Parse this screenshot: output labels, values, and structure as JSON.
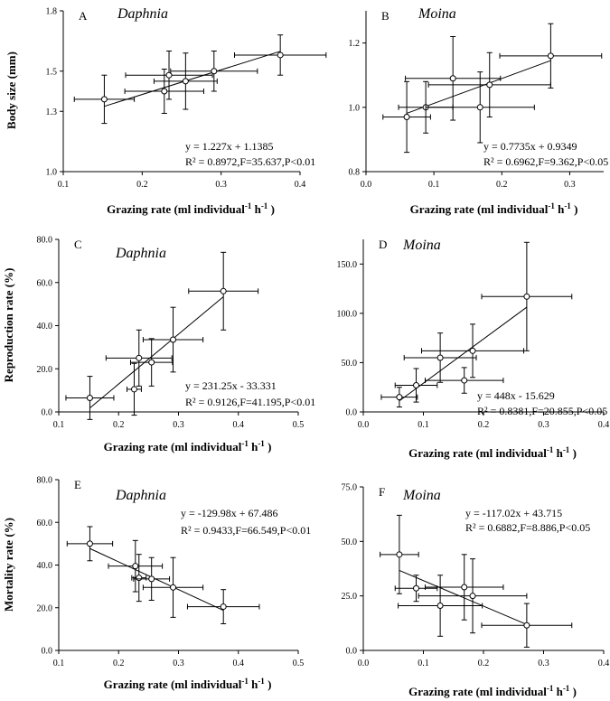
{
  "chart_data": [
    {
      "type": "scatter",
      "panel": "A",
      "title": "Daphnia",
      "xlabel": "Grazing rate (ml individual-1 h-1)",
      "ylabel": "Body size (mm)",
      "xlim": [
        0.1,
        0.4
      ],
      "ylim": [
        1.0,
        1.8
      ],
      "xticks": [
        "0.1",
        "0.2",
        "0.3",
        "0.4"
      ],
      "yticks": [
        "1.0",
        "1.3",
        "1.5",
        "1.8"
      ],
      "points": [
        {
          "x": 0.152,
          "y": 1.36,
          "xerr": 0.038,
          "yerr": 0.12
        },
        {
          "x": 0.228,
          "y": 1.4,
          "xerr": 0.05,
          "yerr": 0.11
        },
        {
          "x": 0.234,
          "y": 1.48,
          "xerr": 0.055,
          "yerr": 0.12
        },
        {
          "x": 0.255,
          "y": 1.45,
          "xerr": 0.04,
          "yerr": 0.14
        },
        {
          "x": 0.291,
          "y": 1.5,
          "xerr": 0.055,
          "yerr": 0.1
        },
        {
          "x": 0.375,
          "y": 1.58,
          "xerr": 0.058,
          "yerr": 0.1
        }
      ],
      "fit": {
        "slope": 1.227,
        "intercept": 1.1385,
        "x_range": [
          0.152,
          0.375
        ]
      },
      "equation": "y = 1.227x + 1.1385",
      "stats": "R² = 0.8972,F=35.637,P<0.01"
    },
    {
      "type": "scatter",
      "panel": "B",
      "title": "Moina",
      "xlabel": "Grazing rate (ml individual-1 h-1)",
      "ylabel": "",
      "xlim": [
        0.0,
        0.35
      ],
      "ylim": [
        0.8,
        1.3
      ],
      "xticks": [
        "0.0",
        "0.1",
        "0.2",
        "0.3"
      ],
      "yticks": [
        "0.8",
        "1.0",
        "1.2"
      ],
      "points": [
        {
          "x": 0.06,
          "y": 0.97,
          "xerr": 0.035,
          "yerr": 0.11
        },
        {
          "x": 0.088,
          "y": 1.0,
          "xerr": 0.04,
          "yerr": 0.08
        },
        {
          "x": 0.128,
          "y": 1.09,
          "xerr": 0.07,
          "yerr": 0.13
        },
        {
          "x": 0.168,
          "y": 1.0,
          "xerr": 0.08,
          "yerr": 0.11
        },
        {
          "x": 0.182,
          "y": 1.07,
          "xerr": 0.09,
          "yerr": 0.1
        },
        {
          "x": 0.272,
          "y": 1.16,
          "xerr": 0.075,
          "yerr": 0.1
        }
      ],
      "fit": {
        "slope": 0.7735,
        "intercept": 0.9349,
        "x_range": [
          0.06,
          0.272
        ]
      },
      "equation": "y = 0.7735x + 0.9349",
      "stats": "R² = 0.6962,F=9.362,P<0.05"
    },
    {
      "type": "scatter",
      "panel": "C",
      "title": "Daphnia",
      "xlabel": "Grazing rate (ml individual-1 h-1)",
      "ylabel": "Reproduction rate (%)",
      "xlim": [
        0.1,
        0.5
      ],
      "ylim": [
        0.0,
        80.0
      ],
      "xticks": [
        "0.1",
        "0.2",
        "0.3",
        "0.4",
        "0.5"
      ],
      "yticks": [
        "0.0",
        "20.0",
        "40.0",
        "60.0",
        "80.0"
      ],
      "points": [
        {
          "x": 0.152,
          "y": 6.5,
          "xerr": 0.04,
          "yerr": 10
        },
        {
          "x": 0.226,
          "y": 10.5,
          "xerr": 0.012,
          "yerr": 12
        },
        {
          "x": 0.234,
          "y": 25.0,
          "xerr": 0.055,
          "yerr": 13
        },
        {
          "x": 0.255,
          "y": 23.0,
          "xerr": 0.035,
          "yerr": 11
        },
        {
          "x": 0.291,
          "y": 33.5,
          "xerr": 0.05,
          "yerr": 15
        },
        {
          "x": 0.375,
          "y": 56.0,
          "xerr": 0.058,
          "yerr": 18
        }
      ],
      "fit": {
        "slope": 231.25,
        "intercept": -33.331,
        "x_range": [
          0.152,
          0.375
        ]
      },
      "equation": "y = 231.25x - 33.331",
      "stats": "R² = 0.9126,F=41.195,P<0.01"
    },
    {
      "type": "scatter",
      "panel": "D",
      "title": "Moina",
      "xlabel": "Grazing rate (ml individual-1 h-1)",
      "ylabel": "",
      "xlim": [
        0.0,
        0.4
      ],
      "ylim": [
        0.0,
        175.0
      ],
      "xticks": [
        "0.0",
        "0.1",
        "0.2",
        "0.3",
        "0.4"
      ],
      "yticks": [
        "0.0",
        "50.0",
        "100.0",
        "150.0"
      ],
      "points": [
        {
          "x": 0.06,
          "y": 15,
          "xerr": 0.03,
          "yerr": 10
        },
        {
          "x": 0.088,
          "y": 27,
          "xerr": 0.035,
          "yerr": 17
        },
        {
          "x": 0.128,
          "y": 55,
          "xerr": 0.06,
          "yerr": 25
        },
        {
          "x": 0.168,
          "y": 32,
          "xerr": 0.065,
          "yerr": 13
        },
        {
          "x": 0.182,
          "y": 62,
          "xerr": 0.085,
          "yerr": 27
        },
        {
          "x": 0.272,
          "y": 117,
          "xerr": 0.075,
          "yerr": 55
        }
      ],
      "fit": {
        "slope": 448,
        "intercept": -15.629,
        "x_range": [
          0.06,
          0.272
        ]
      },
      "equation": "y = 448x - 15.629",
      "stats": "R² = 0.8381,F=20.855,P<0.05"
    },
    {
      "type": "scatter",
      "panel": "E",
      "title": "Daphnia",
      "xlabel": "Grazing rate (ml individual-1 h-1)",
      "ylabel": "Mortality rate (%)",
      "xlim": [
        0.1,
        0.5
      ],
      "ylim": [
        0.0,
        80.0
      ],
      "xticks": [
        "0.1",
        "0.2",
        "0.3",
        "0.4",
        "0.5"
      ],
      "yticks": [
        "0.0",
        "20.0",
        "40.0",
        "60.0",
        "80.0"
      ],
      "points": [
        {
          "x": 0.152,
          "y": 50,
          "xerr": 0.038,
          "yerr": 8
        },
        {
          "x": 0.228,
          "y": 39.5,
          "xerr": 0.045,
          "yerr": 12
        },
        {
          "x": 0.234,
          "y": 34,
          "xerr": 0.012,
          "yerr": 11
        },
        {
          "x": 0.255,
          "y": 33.5,
          "xerr": 0.03,
          "yerr": 10
        },
        {
          "x": 0.291,
          "y": 29.5,
          "xerr": 0.05,
          "yerr": 14
        },
        {
          "x": 0.375,
          "y": 20.5,
          "xerr": 0.06,
          "yerr": 8
        }
      ],
      "fit": {
        "slope": -129.98,
        "intercept": 67.486,
        "x_range": [
          0.152,
          0.375
        ]
      },
      "equation": "y = -129.98x + 67.486",
      "stats": "R² = 0.9433,F=66.549,P<0.01"
    },
    {
      "type": "scatter",
      "panel": "F",
      "title": "Moina",
      "xlabel": "Grazing rate (ml individual-1 h-1)",
      "ylabel": "",
      "xlim": [
        0.0,
        0.4
      ],
      "ylim": [
        0.0,
        75.0
      ],
      "xticks": [
        "0.0",
        "0.1",
        "0.2",
        "0.3",
        "0.4"
      ],
      "yticks": [
        "0.0",
        "25.0",
        "50.0",
        "75.0"
      ],
      "points": [
        {
          "x": 0.06,
          "y": 44,
          "xerr": 0.032,
          "yerr": 18
        },
        {
          "x": 0.088,
          "y": 28.5,
          "xerr": 0.035,
          "yerr": 6
        },
        {
          "x": 0.128,
          "y": 20.5,
          "xerr": 0.07,
          "yerr": 14
        },
        {
          "x": 0.168,
          "y": 29,
          "xerr": 0.065,
          "yerr": 15
        },
        {
          "x": 0.182,
          "y": 25,
          "xerr": 0.09,
          "yerr": 17
        },
        {
          "x": 0.272,
          "y": 11.5,
          "xerr": 0.075,
          "yerr": 10
        }
      ],
      "fit": {
        "slope": -117.02,
        "intercept": 43.715,
        "x_range": [
          0.06,
          0.272
        ]
      },
      "equation": "y = -117.02x + 43.715",
      "stats": "R² = 0.6882,F=8.886,P<0.05"
    }
  ]
}
